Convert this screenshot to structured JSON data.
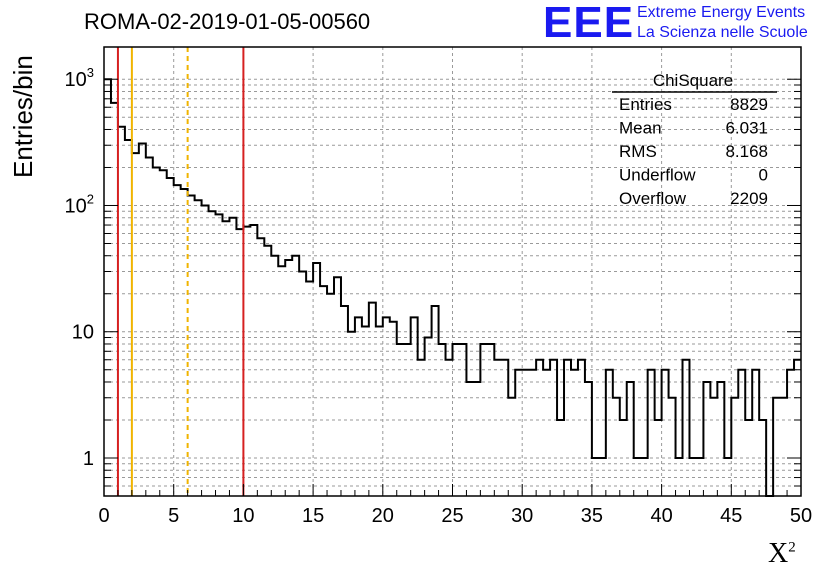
{
  "header": {
    "title": "ROMA-02-2019-01-05-00560",
    "logo_text": "EEE",
    "logo_line1": "Extreme Energy Events",
    "logo_line2": "La Scienza nelle Scuole"
  },
  "colors": {
    "histogram": "#000000",
    "red_lines": "#d62020",
    "yellow_lines": "#f0b400",
    "logo": "#1a1af0",
    "grid": "#9a9a9a"
  },
  "stats_box": {
    "title": "ChiSquare",
    "rows": [
      {
        "label": "Entries",
        "value": "8829"
      },
      {
        "label": "Mean",
        "value": "6.031"
      },
      {
        "label": "RMS",
        "value": "8.168"
      },
      {
        "label": "Underflow",
        "value": "0"
      },
      {
        "label": "Overflow",
        "value": "2209"
      }
    ]
  },
  "chart_data": {
    "type": "histogram",
    "title": "ROMA-02-2019-01-05-00560",
    "xlabel": "X",
    "xlabel_superscript": "2",
    "ylabel": "Entries/bin",
    "xlim": [
      0,
      50
    ],
    "ylim": [
      0.5,
      1800
    ],
    "yscale": "log",
    "grid": true,
    "bin_width": 0.5,
    "x_ticks": [
      "0",
      "5",
      "10",
      "15",
      "20",
      "25",
      "30",
      "35",
      "40",
      "45",
      "50"
    ],
    "y_ticks": [
      {
        "value": 1,
        "label": "1"
      },
      {
        "value": 10,
        "label": "10"
      },
      {
        "value": 100,
        "label": "10",
        "exp": "2"
      },
      {
        "value": 1000,
        "label": "10",
        "exp": "3"
      }
    ],
    "values": [
      1000,
      650,
      420,
      330,
      260,
      310,
      240,
      200,
      190,
      165,
      145,
      135,
      120,
      110,
      100,
      90,
      85,
      75,
      80,
      65,
      68,
      70,
      55,
      48,
      40,
      33,
      37,
      40,
      30,
      25,
      35,
      23,
      20,
      27,
      16,
      10,
      13,
      11,
      17,
      11,
      13,
      12,
      8,
      8,
      13,
      6,
      9,
      16,
      8,
      6,
      8,
      8,
      4,
      4,
      8,
      8,
      6,
      6,
      3,
      5,
      5,
      5,
      6,
      5,
      6,
      2,
      6,
      5,
      6,
      4,
      1,
      1,
      5,
      3,
      2,
      4,
      1,
      1,
      5,
      2,
      5,
      3,
      1,
      6,
      1,
      1,
      4,
      3,
      4,
      1,
      3,
      5,
      2,
      5,
      2,
      0.4,
      3,
      3,
      5,
      6
    ],
    "vertical_lines": [
      {
        "x": 1,
        "color": "red",
        "style": "solid"
      },
      {
        "x": 2,
        "color": "yellow",
        "style": "solid"
      },
      {
        "x": 6,
        "color": "yellow",
        "style": "dashed"
      },
      {
        "x": 10,
        "color": "red",
        "style": "solid"
      }
    ]
  }
}
